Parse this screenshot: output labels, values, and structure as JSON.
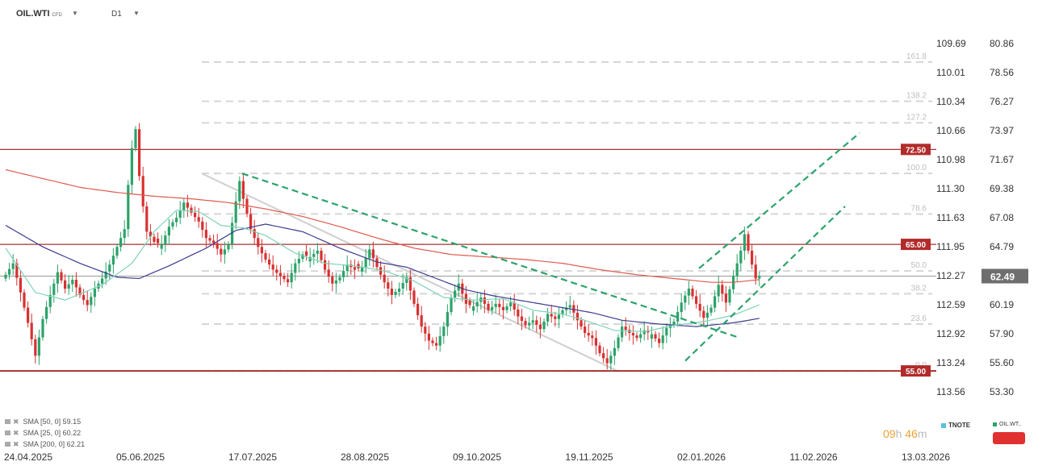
{
  "header": {
    "symbol": "OIL.WTI",
    "symbol_type": "CFD",
    "timeframe": "D1"
  },
  "colors": {
    "bull": "#2ca36a",
    "bear": "#d83131",
    "sma50": "#3b3b8f",
    "sma25": "#7fd3b8",
    "sma200": "#e05a4e",
    "channel": "#2ca36a",
    "fib": "#d6d6d6",
    "hline": "#a83030",
    "price_tag": "#6e6e6e",
    "level_tag": "#b22a2a",
    "timer": "#f0a030"
  },
  "legend": [
    {
      "label": "SMA [50, 0] 59.15"
    },
    {
      "label": "SMA [25, 0] 60.22"
    },
    {
      "label": "SMA [200, 0] 62.21"
    }
  ],
  "timer": {
    "hours": "09",
    "h": "h",
    "minutes": "46",
    "m": "m"
  },
  "bottom_right": {
    "tnote": "TNOTE",
    "oil": "OIL.WT.."
  },
  "chart_data": {
    "type": "candlestick",
    "x_labels": [
      "24.04.2025",
      "05.06.2025",
      "17.07.2025",
      "28.08.2025",
      "09.10.2025",
      "19.11.2025",
      "02.01.2026",
      "11.02.2026",
      "13.03.2026"
    ],
    "y_ticks_right": [
      "80.86",
      "78.56",
      "76.27",
      "73.97",
      "71.67",
      "69.38",
      "67.08",
      "64.79",
      "62.49",
      "60.19",
      "57.90",
      "55.60",
      "53.30"
    ],
    "y_ticks_left": [
      "109.69",
      "110.01",
      "110.34",
      "110.66",
      "110.98",
      "111.30",
      "111.63",
      "111.95",
      "112.27",
      "112.59",
      "112.92",
      "113.24",
      "113.56"
    ],
    "ylim": [
      52.2,
      83.0
    ],
    "current_price": "62.49",
    "levels": [
      {
        "label": "72.50",
        "value": 72.5
      },
      {
        "label": "65.00",
        "value": 65.0
      },
      {
        "label": "55.00",
        "value": 55.0
      }
    ],
    "fibonacci": [
      {
        "label": "161.8",
        "value": 79.4
      },
      {
        "label": "138.2",
        "value": 76.3
      },
      {
        "label": "127.2",
        "value": 74.6
      },
      {
        "label": "100.0",
        "value": 70.6
      },
      {
        "label": "78.6",
        "value": 67.4
      },
      {
        "label": "50.0",
        "value": 62.9
      },
      {
        "label": "38.2",
        "value": 61.1
      },
      {
        "label": "23.6",
        "value": 58.7
      },
      {
        "label": "0.0",
        "value": 55.0
      }
    ],
    "trend": {
      "close": [
        [
          0,
          62.6
        ],
        [
          2,
          63.5
        ],
        [
          4,
          61.2
        ],
        [
          6,
          58.8
        ],
        [
          8,
          56.2
        ],
        [
          10,
          59.1
        ],
        [
          12,
          61.0
        ],
        [
          14,
          62.8
        ],
        [
          16,
          61.5
        ],
        [
          18,
          62.2
        ],
        [
          20,
          61.0
        ],
        [
          22,
          60.2
        ],
        [
          24,
          61.5
        ],
        [
          26,
          62.3
        ],
        [
          28,
          63.4
        ],
        [
          30,
          64.8
        ],
        [
          32,
          66.2
        ],
        [
          33,
          69.7
        ],
        [
          34,
          72.6
        ],
        [
          35,
          74.1
        ],
        [
          36,
          70.4
        ],
        [
          37,
          68.0
        ],
        [
          38,
          66.0
        ],
        [
          40,
          65.2
        ],
        [
          42,
          65.0
        ],
        [
          44,
          66.4
        ],
        [
          46,
          67.1
        ],
        [
          48,
          68.3
        ],
        [
          50,
          67.5
        ],
        [
          52,
          66.8
        ],
        [
          54,
          65.5
        ],
        [
          56,
          65.1
        ],
        [
          58,
          64.2
        ],
        [
          60,
          65.0
        ],
        [
          62,
          68.4
        ],
        [
          63,
          70.0
        ],
        [
          64,
          68.6
        ],
        [
          66,
          66.2
        ],
        [
          68,
          64.8
        ],
        [
          70,
          63.8
        ],
        [
          72,
          63.0
        ],
        [
          74,
          62.5
        ],
        [
          76,
          62.0
        ],
        [
          78,
          63.5
        ],
        [
          80,
          64.2
        ],
        [
          82,
          64.0
        ],
        [
          84,
          64.5
        ],
        [
          86,
          63.0
        ],
        [
          88,
          61.9
        ],
        [
          90,
          62.4
        ],
        [
          92,
          63.4
        ],
        [
          94,
          63.0
        ],
        [
          96,
          63.2
        ],
        [
          98,
          64.6
        ],
        [
          100,
          63.2
        ],
        [
          102,
          62.0
        ],
        [
          104,
          61.0
        ],
        [
          106,
          61.5
        ],
        [
          108,
          62.4
        ],
        [
          110,
          60.3
        ],
        [
          112,
          58.5
        ],
        [
          114,
          57.4
        ],
        [
          116,
          57.0
        ],
        [
          118,
          58.5
        ],
        [
          120,
          60.8
        ],
        [
          122,
          61.9
        ],
        [
          124,
          60.3
        ],
        [
          126,
          60.1
        ],
        [
          128,
          60.8
        ],
        [
          130,
          59.8
        ],
        [
          132,
          60.3
        ],
        [
          134,
          59.8
        ],
        [
          136,
          60.4
        ],
        [
          138,
          59.3
        ],
        [
          140,
          58.6
        ],
        [
          142,
          59.0
        ],
        [
          144,
          58.3
        ],
        [
          146,
          59.5
        ],
        [
          148,
          59.1
        ],
        [
          150,
          59.8
        ],
        [
          152,
          60.2
        ],
        [
          154,
          59.0
        ],
        [
          156,
          58.0
        ],
        [
          158,
          57.6
        ],
        [
          160,
          56.4
        ],
        [
          162,
          55.6
        ],
        [
          164,
          56.8
        ],
        [
          166,
          58.5
        ],
        [
          168,
          58.0
        ],
        [
          170,
          57.6
        ],
        [
          172,
          58.2
        ],
        [
          174,
          57.9
        ],
        [
          176,
          57.2
        ],
        [
          178,
          58.4
        ],
        [
          180,
          58.9
        ],
        [
          182,
          60.4
        ],
        [
          184,
          61.5
        ],
        [
          186,
          60.3
        ],
        [
          188,
          59.2
        ],
        [
          190,
          60.0
        ],
        [
          192,
          61.8
        ],
        [
          194,
          60.4
        ],
        [
          196,
          62.5
        ],
        [
          198,
          64.5
        ],
        [
          199,
          65.8
        ],
        [
          200,
          64.5
        ],
        [
          202,
          62.3
        ],
        [
          203,
          62.49
        ]
      ],
      "sma50": [
        [
          0,
          66.5
        ],
        [
          10,
          64.8
        ],
        [
          20,
          63.5
        ],
        [
          30,
          62.4
        ],
        [
          36,
          62.3
        ],
        [
          44,
          63.3
        ],
        [
          54,
          64.7
        ],
        [
          62,
          66.1
        ],
        [
          70,
          66.6
        ],
        [
          80,
          66.0
        ],
        [
          90,
          64.7
        ],
        [
          100,
          63.6
        ],
        [
          108,
          63.2
        ],
        [
          116,
          62.3
        ],
        [
          124,
          61.4
        ],
        [
          132,
          60.9
        ],
        [
          140,
          60.5
        ],
        [
          150,
          60.0
        ],
        [
          158,
          59.6
        ],
        [
          166,
          59.0
        ],
        [
          176,
          58.7
        ],
        [
          186,
          58.5
        ],
        [
          196,
          58.8
        ],
        [
          203,
          59.15
        ]
      ],
      "sma25": [
        [
          0,
          64.7
        ],
        [
          8,
          61.2
        ],
        [
          16,
          60.6
        ],
        [
          26,
          61.8
        ],
        [
          34,
          63.5
        ],
        [
          40,
          66.0
        ],
        [
          46,
          67.7
        ],
        [
          52,
          67.6
        ],
        [
          58,
          66.5
        ],
        [
          64,
          66.3
        ],
        [
          70,
          65.7
        ],
        [
          78,
          64.3
        ],
        [
          86,
          63.5
        ],
        [
          94,
          63.3
        ],
        [
          102,
          62.9
        ],
        [
          110,
          62.1
        ],
        [
          118,
          60.8
        ],
        [
          126,
          60.6
        ],
        [
          134,
          60.7
        ],
        [
          142,
          59.8
        ],
        [
          150,
          59.5
        ],
        [
          156,
          59.0
        ],
        [
          164,
          58.2
        ],
        [
          172,
          58.1
        ],
        [
          180,
          58.6
        ],
        [
          188,
          58.9
        ],
        [
          196,
          59.4
        ],
        [
          203,
          60.22
        ]
      ],
      "sma200": [
        [
          0,
          70.9
        ],
        [
          10,
          70.2
        ],
        [
          20,
          69.5
        ],
        [
          30,
          69.1
        ],
        [
          40,
          68.8
        ],
        [
          50,
          68.6
        ],
        [
          60,
          68.3
        ],
        [
          70,
          67.8
        ],
        [
          80,
          67.2
        ],
        [
          90,
          66.4
        ],
        [
          100,
          65.5
        ],
        [
          110,
          64.7
        ],
        [
          120,
          64.2
        ],
        [
          130,
          64.0
        ],
        [
          140,
          63.8
        ],
        [
          150,
          63.5
        ],
        [
          160,
          63.0
        ],
        [
          170,
          62.6
        ],
        [
          180,
          62.3
        ],
        [
          190,
          62.0
        ],
        [
          196,
          62.0
        ],
        [
          203,
          62.21
        ]
      ]
    }
  }
}
